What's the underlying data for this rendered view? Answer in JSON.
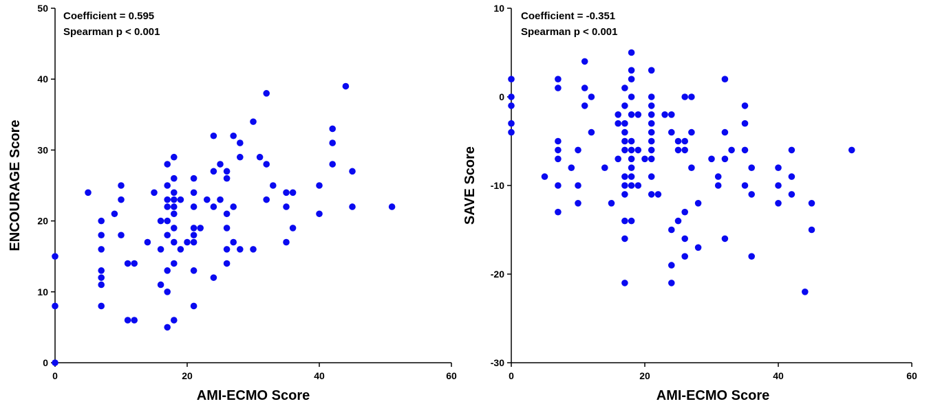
{
  "chart_data": [
    {
      "type": "scatter",
      "xlabel": "AMI-ECMO Score",
      "ylabel": "ENCOURAGE Score",
      "xlim": [
        0,
        60
      ],
      "ylim": [
        0,
        50
      ],
      "xticks": [
        0,
        20,
        40,
        60
      ],
      "yticks": [
        0,
        10,
        20,
        30,
        40,
        50
      ],
      "grid": false,
      "annotations": [
        "Coefficient = 0.595",
        "Spearman p < 0.001"
      ],
      "marker_color": "#0a0af0",
      "points": [
        [
          0,
          0
        ],
        [
          0,
          8
        ],
        [
          0,
          15
        ],
        [
          5,
          24
        ],
        [
          7,
          8
        ],
        [
          7,
          11
        ],
        [
          7,
          12
        ],
        [
          7,
          13
        ],
        [
          7,
          16
        ],
        [
          7,
          18
        ],
        [
          7,
          20
        ],
        [
          9,
          21
        ],
        [
          10,
          18
        ],
        [
          10,
          23
        ],
        [
          10,
          25
        ],
        [
          11,
          6
        ],
        [
          11,
          14
        ],
        [
          12,
          6
        ],
        [
          12,
          14
        ],
        [
          14,
          17
        ],
        [
          15,
          24
        ],
        [
          16,
          11
        ],
        [
          16,
          16
        ],
        [
          16,
          20
        ],
        [
          17,
          5
        ],
        [
          17,
          10
        ],
        [
          17,
          13
        ],
        [
          17,
          18
        ],
        [
          17,
          20
        ],
        [
          17,
          22
        ],
        [
          17,
          23
        ],
        [
          17,
          25
        ],
        [
          17,
          28
        ],
        [
          18,
          6
        ],
        [
          18,
          14
        ],
        [
          18,
          17
        ],
        [
          18,
          19
        ],
        [
          18,
          21
        ],
        [
          18,
          22
        ],
        [
          18,
          23
        ],
        [
          18,
          24
        ],
        [
          18,
          26
        ],
        [
          18,
          29
        ],
        [
          19,
          16
        ],
        [
          19,
          23
        ],
        [
          20,
          17
        ],
        [
          21,
          8
        ],
        [
          21,
          13
        ],
        [
          21,
          17
        ],
        [
          21,
          18
        ],
        [
          21,
          19
        ],
        [
          21,
          22
        ],
        [
          21,
          24
        ],
        [
          21,
          26
        ],
        [
          22,
          19
        ],
        [
          23,
          23
        ],
        [
          24,
          12
        ],
        [
          24,
          22
        ],
        [
          24,
          27
        ],
        [
          24,
          32
        ],
        [
          25,
          23
        ],
        [
          25,
          28
        ],
        [
          26,
          14
        ],
        [
          26,
          16
        ],
        [
          26,
          19
        ],
        [
          26,
          21
        ],
        [
          26,
          26
        ],
        [
          26,
          27
        ],
        [
          27,
          17
        ],
        [
          27,
          22
        ],
        [
          27,
          32
        ],
        [
          28,
          16
        ],
        [
          28,
          29
        ],
        [
          28,
          31
        ],
        [
          30,
          16
        ],
        [
          30,
          34
        ],
        [
          31,
          29
        ],
        [
          32,
          23
        ],
        [
          32,
          28
        ],
        [
          32,
          38
        ],
        [
          33,
          25
        ],
        [
          35,
          17
        ],
        [
          35,
          22
        ],
        [
          35,
          24
        ],
        [
          36,
          19
        ],
        [
          36,
          24
        ],
        [
          40,
          21
        ],
        [
          40,
          25
        ],
        [
          42,
          28
        ],
        [
          42,
          31
        ],
        [
          42,
          33
        ],
        [
          44,
          39
        ],
        [
          45,
          22
        ],
        [
          45,
          27
        ],
        [
          51,
          22
        ]
      ]
    },
    {
      "type": "scatter",
      "xlabel": "AMI-ECMO Score",
      "ylabel": "SAVE Score",
      "xlim": [
        0,
        60
      ],
      "ylim": [
        -30,
        10
      ],
      "xticks": [
        0,
        20,
        40,
        60
      ],
      "yticks": [
        -30,
        -20,
        -10,
        0,
        10
      ],
      "grid": false,
      "annotations": [
        "Coefficient = -0.351",
        "Spearman p < 0.001"
      ],
      "marker_color": "#0a0af0",
      "points": [
        [
          0,
          2
        ],
        [
          0,
          0
        ],
        [
          0,
          -1
        ],
        [
          0,
          -3
        ],
        [
          0,
          -4
        ],
        [
          5,
          -9
        ],
        [
          7,
          2
        ],
        [
          7,
          1
        ],
        [
          7,
          -5
        ],
        [
          7,
          -6
        ],
        [
          7,
          -7
        ],
        [
          7,
          -10
        ],
        [
          7,
          -13
        ],
        [
          9,
          -8
        ],
        [
          10,
          -6
        ],
        [
          10,
          -10
        ],
        [
          10,
          -12
        ],
        [
          11,
          4
        ],
        [
          11,
          1
        ],
        [
          11,
          -1
        ],
        [
          12,
          0
        ],
        [
          12,
          -4
        ],
        [
          14,
          -8
        ],
        [
          15,
          -12
        ],
        [
          16,
          -2
        ],
        [
          16,
          -3
        ],
        [
          16,
          -7
        ],
        [
          17,
          1
        ],
        [
          17,
          -1
        ],
        [
          17,
          -3
        ],
        [
          17,
          -4
        ],
        [
          17,
          -5
        ],
        [
          17,
          -6
        ],
        [
          17,
          -9
        ],
        [
          17,
          -10
        ],
        [
          17,
          -11
        ],
        [
          17,
          -14
        ],
        [
          17,
          -16
        ],
        [
          17,
          -21
        ],
        [
          18,
          5
        ],
        [
          18,
          3
        ],
        [
          18,
          2
        ],
        [
          18,
          0
        ],
        [
          18,
          -2
        ],
        [
          18,
          -5
        ],
        [
          18,
          -6
        ],
        [
          18,
          -7
        ],
        [
          18,
          -8
        ],
        [
          18,
          -9
        ],
        [
          18,
          -10
        ],
        [
          18,
          -14
        ],
        [
          19,
          -2
        ],
        [
          19,
          -6
        ],
        [
          19,
          -10
        ],
        [
          20,
          -7
        ],
        [
          21,
          3
        ],
        [
          21,
          0
        ],
        [
          21,
          -1
        ],
        [
          21,
          -2
        ],
        [
          21,
          -3
        ],
        [
          21,
          -4
        ],
        [
          21,
          -5
        ],
        [
          21,
          -6
        ],
        [
          21,
          -7
        ],
        [
          21,
          -9
        ],
        [
          21,
          -11
        ],
        [
          22,
          -11
        ],
        [
          23,
          -2
        ],
        [
          24,
          -2
        ],
        [
          24,
          -4
        ],
        [
          24,
          -15
        ],
        [
          24,
          -19
        ],
        [
          24,
          -21
        ],
        [
          25,
          -5
        ],
        [
          25,
          -6
        ],
        [
          25,
          -14
        ],
        [
          26,
          0
        ],
        [
          26,
          -5
        ],
        [
          26,
          -6
        ],
        [
          26,
          -13
        ],
        [
          26,
          -16
        ],
        [
          26,
          -18
        ],
        [
          27,
          0
        ],
        [
          27,
          -4
        ],
        [
          27,
          -8
        ],
        [
          28,
          -12
        ],
        [
          28,
          -17
        ],
        [
          30,
          -7
        ],
        [
          31,
          -9
        ],
        [
          31,
          -10
        ],
        [
          32,
          2
        ],
        [
          32,
          -4
        ],
        [
          32,
          -7
        ],
        [
          32,
          -16
        ],
        [
          33,
          -6
        ],
        [
          35,
          -1
        ],
        [
          35,
          -3
        ],
        [
          35,
          -6
        ],
        [
          35,
          -10
        ],
        [
          36,
          -8
        ],
        [
          36,
          -11
        ],
        [
          36,
          -18
        ],
        [
          40,
          -8
        ],
        [
          40,
          -10
        ],
        [
          40,
          -12
        ],
        [
          42,
          -6
        ],
        [
          42,
          -9
        ],
        [
          42,
          -11
        ],
        [
          44,
          -22
        ],
        [
          45,
          -12
        ],
        [
          45,
          -15
        ],
        [
          51,
          -6
        ]
      ]
    }
  ]
}
